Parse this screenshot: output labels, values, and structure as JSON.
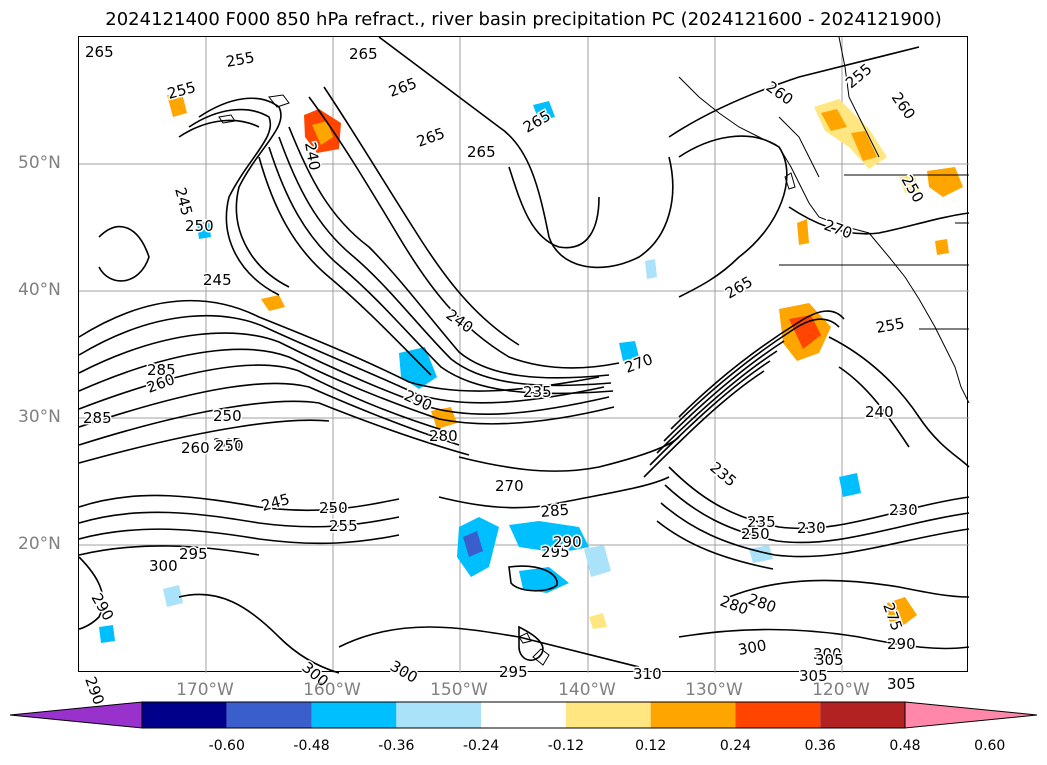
{
  "title": "2024121400 F000 850 hPa refract., river basin precipitation PC (2024121600 - 2024121900)",
  "lat_labels": [
    "50°N",
    "40°N",
    "30°N",
    "20°N"
  ],
  "lon_labels": [
    "170°W",
    "160°W",
    "150°W",
    "140°W",
    "130°W",
    "120°W"
  ],
  "colorbar": {
    "ticks": [
      "-0.60",
      "-0.48",
      "-0.36",
      "-0.24",
      "-0.12",
      "0.12",
      "0.24",
      "0.36",
      "0.48",
      "0.60"
    ],
    "colors": [
      "#9932cc",
      "#00008b",
      "#3a5fcd",
      "#00bfff",
      "#a9e2f9",
      "#ffffff",
      "#ffe680",
      "#ffa500",
      "#ff4500",
      "#b22222",
      "#ff88aa"
    ]
  },
  "contour_labels": [
    "265",
    "255",
    "255",
    "265",
    "265",
    "265",
    "265",
    "265",
    "260",
    "255",
    "260",
    "250",
    "245",
    "250",
    "240",
    "245",
    "265",
    "270",
    "255",
    "240",
    "235",
    "270",
    "290",
    "280",
    "285",
    "260",
    "285",
    "245",
    "250",
    "260",
    "270",
    "285",
    "245",
    "250",
    "300",
    "295",
    "290",
    "300",
    "280",
    "295",
    "290",
    "235",
    "230",
    "240",
    "250",
    "255",
    "235",
    "250",
    "230",
    "275",
    "280",
    "300",
    "305",
    "300",
    "305",
    "310",
    "295",
    "290",
    "300",
    "290",
    "305"
  ]
}
